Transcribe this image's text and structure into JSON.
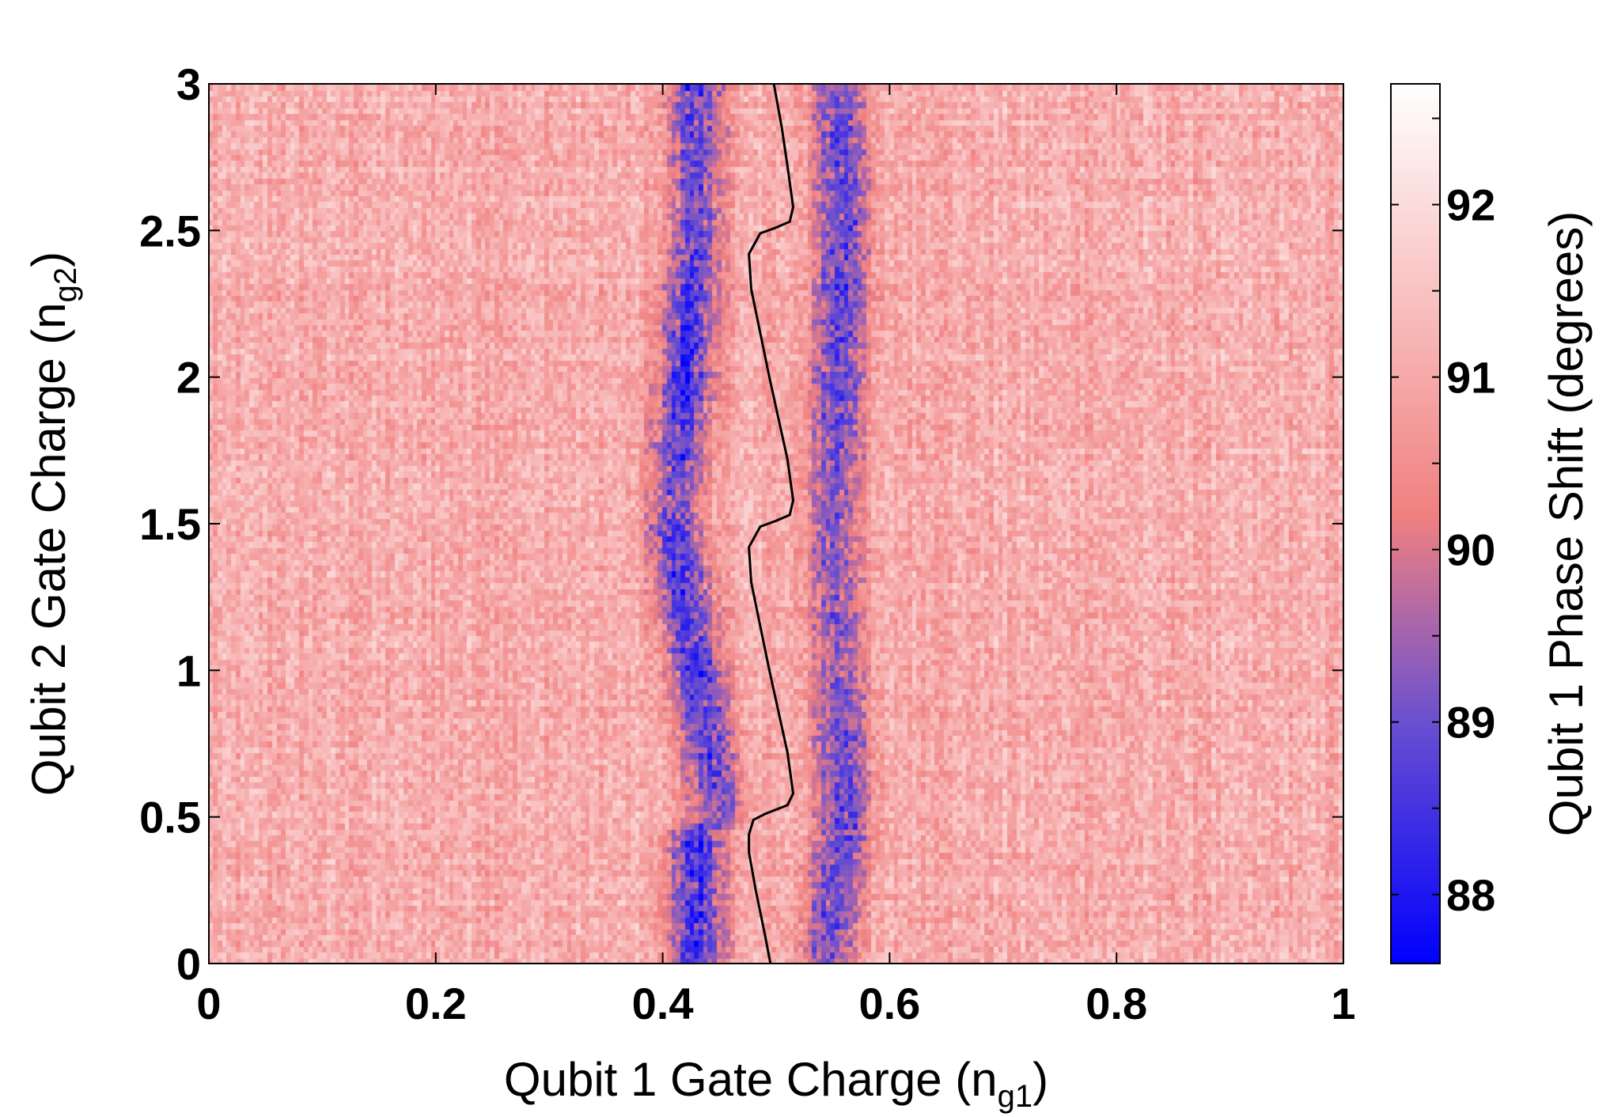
{
  "chart_data": {
    "type": "heatmap",
    "title": "",
    "xlabel": {
      "main": "Qubit 1 Gate Charge (n",
      "sub": "g1",
      "end": ")"
    },
    "ylabel": {
      "main": "Qubit 2 Gate Charge (n",
      "sub": "g2",
      "end": ")"
    },
    "colorbar_label": "Qubit 1 Phase Shift (degrees)",
    "xlim": [
      0,
      1
    ],
    "ylim": [
      0,
      3
    ],
    "clim": [
      87.6,
      92.7
    ],
    "xticks": [
      0,
      0.2,
      0.4,
      0.6,
      0.8,
      1
    ],
    "xtick_labels": [
      "0",
      "0.2",
      "0.4",
      "0.6",
      "0.8",
      "1"
    ],
    "yticks": [
      0,
      0.5,
      1,
      1.5,
      2,
      2.5,
      3
    ],
    "ytick_labels": [
      "0",
      "0.5",
      "1",
      "1.5",
      "2",
      "2.5",
      "3"
    ],
    "colorbar_ticks": [
      88,
      89,
      90,
      91,
      92
    ],
    "colorbar_tick_labels": [
      "88",
      "89",
      "90",
      "91",
      "92"
    ],
    "colormap": [
      {
        "value": 87.6,
        "color": "#0000ff"
      },
      {
        "value": 89.0,
        "color": "#6a4fd0"
      },
      {
        "value": 90.2,
        "color": "#f08080"
      },
      {
        "value": 91.3,
        "color": "#f8b8b8"
      },
      {
        "value": 92.7,
        "color": "#ffffff"
      }
    ],
    "background_value": 91.1,
    "grid_resolution": {
      "nx": 250,
      "ny": 150
    },
    "dips": [
      {
        "center_x": [
          [
            0,
            0.43
          ],
          [
            0.45,
            0.43
          ],
          [
            0.5,
            0.45
          ],
          [
            1.5,
            0.41
          ],
          [
            2.5,
            0.43
          ],
          [
            3,
            0.43
          ]
        ],
        "width_x": 0.025,
        "depth": 2.6,
        "depth_profile": [
          [
            0,
            1.0
          ],
          [
            0.45,
            0.95
          ],
          [
            0.5,
            0.75
          ],
          [
            1.0,
            0.95
          ],
          [
            1.45,
            0.95
          ],
          [
            1.55,
            0.8
          ],
          [
            2.0,
            1.0
          ],
          [
            2.45,
            0.85
          ],
          [
            2.6,
            0.7
          ],
          [
            3.0,
            0.95
          ]
        ]
      },
      {
        "center_x": [
          [
            0,
            0.545
          ],
          [
            0.5,
            0.56
          ],
          [
            1.5,
            0.55
          ],
          [
            2.5,
            0.56
          ],
          [
            3,
            0.555
          ]
        ],
        "width_x": 0.025,
        "depth": 2.4,
        "depth_profile": [
          [
            0,
            0.8
          ],
          [
            0.55,
            0.95
          ],
          [
            1.0,
            0.7
          ],
          [
            1.5,
            0.75
          ],
          [
            2.0,
            0.85
          ],
          [
            2.5,
            0.95
          ],
          [
            3.0,
            0.8
          ]
        ]
      }
    ],
    "overlay_line": {
      "color": "#000000",
      "x": [
        0.495,
        0.49,
        0.482,
        0.476,
        0.476,
        0.48,
        0.49,
        0.51,
        0.515,
        0.51,
        0.494,
        0.478,
        0.476,
        0.486,
        0.5,
        0.512,
        0.515,
        0.51,
        0.494,
        0.478,
        0.476,
        0.486,
        0.5,
        0.512,
        0.515,
        0.51,
        0.505,
        0.498
      ],
      "y": [
        0,
        0.1,
        0.25,
        0.38,
        0.44,
        0.49,
        0.51,
        0.54,
        0.58,
        0.72,
        1.0,
        1.3,
        1.42,
        1.49,
        1.51,
        1.53,
        1.58,
        1.72,
        2.0,
        2.3,
        2.42,
        2.49,
        2.51,
        2.53,
        2.58,
        2.72,
        2.85,
        3.0
      ]
    }
  }
}
